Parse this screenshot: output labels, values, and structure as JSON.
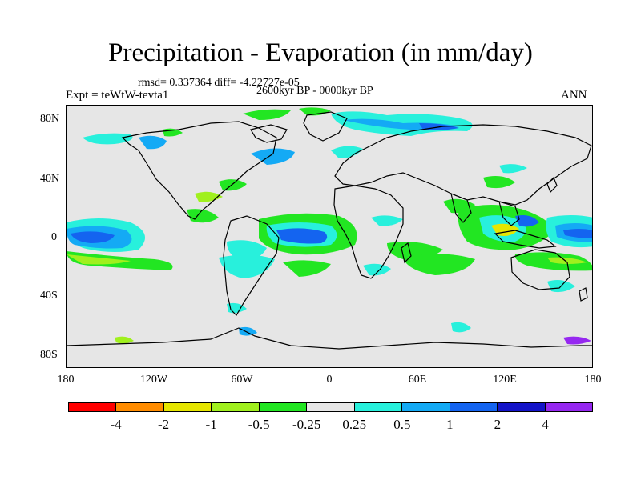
{
  "title": "Precipitation - Evaporation (in mm/day)",
  "stats": "rmsd= 0.337364 diff= -4.22727e-05",
  "period": "2600kyr BP - 0000kyr BP",
  "expt": "Expt = teWtW-tevta1",
  "season": "ANN",
  "y_ticks": [
    "80N",
    "40N",
    "0",
    "40S",
    "80S"
  ],
  "x_ticks": [
    "180",
    "120W",
    "60W",
    "0",
    "60E",
    "120E",
    "180"
  ],
  "colorbar": {
    "colors": [
      "#ff0000",
      "#ff8c00",
      "#e6e600",
      "#a0f01e",
      "#22e622",
      "#e6e6e6",
      "#28f0dc",
      "#14aaf5",
      "#1464f0",
      "#1414c8",
      "#9628f0"
    ],
    "labels": [
      "-4",
      "-2",
      "-1",
      "-0.5",
      "-0.25",
      "0.25",
      "0.5",
      "1",
      "2",
      "4"
    ]
  }
}
